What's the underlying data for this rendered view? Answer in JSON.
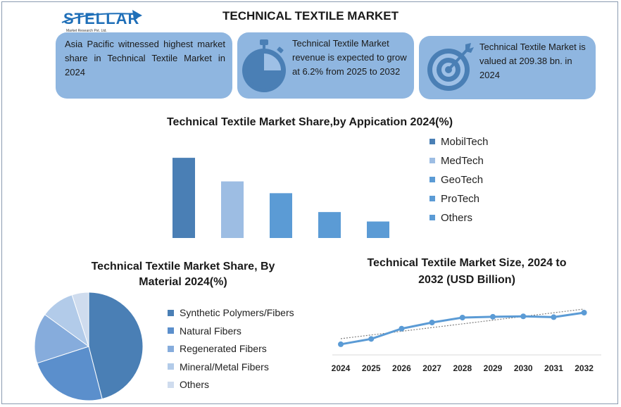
{
  "logo": {
    "name": "STELLAR",
    "subtitle": "Market Research Pvt. Ltd."
  },
  "title": "TECHNICAL TEXTILE MARKET",
  "cards": [
    {
      "text": "Asia Pacific witnessed highest market share in Technical Textile Market in 2024",
      "icon": "none"
    },
    {
      "text": "Technical Textile Market revenue is expected to grow at 6.2% from 2025 to 2032",
      "icon": "stopwatch-icon"
    },
    {
      "text": "Technical Textile Market is valued at 209.38 bn. in 2024",
      "icon": "target-icon"
    }
  ],
  "colors": {
    "card_bg": "#8fb6e0",
    "primary": "#4a7fb5",
    "line": "#5b9bd5"
  },
  "chart_data": [
    {
      "type": "bar",
      "title": "Technical Textile Market Share,by Appication 2024(%)",
      "categories": [
        "MobilTech",
        "MedTech",
        "GeoTech",
        "ProTech",
        "Others"
      ],
      "values": [
        34,
        24,
        19,
        11,
        7
      ],
      "colors": [
        "#4a7fb5",
        "#9dbde3",
        "#5b9bd5",
        "#5b9bd5",
        "#5b9bd5"
      ],
      "ylim": [
        0,
        40
      ],
      "xlabel": "",
      "ylabel": "",
      "legend": "right"
    },
    {
      "type": "pie",
      "title_line1": "Technical Textile Market Share, By",
      "title_line2": "Material 2024(%)",
      "labels": [
        "Synthetic Polymers/Fibers",
        "Natural Fibers",
        "Regenerated Fibers",
        "Mineral/Metal Fibers",
        "Others"
      ],
      "values": [
        46,
        24,
        15,
        10,
        5
      ],
      "colors": [
        "#4a7fb5",
        "#5b8fcc",
        "#86acdc",
        "#b2cbe9",
        "#cfdcee"
      ],
      "legend": "right"
    },
    {
      "type": "line",
      "title_line1": "Technical Textile Market Size, 2024 to",
      "title_line2": "2032 (USD Billion)",
      "x": [
        "2024",
        "2025",
        "2026",
        "2027",
        "2028",
        "2029",
        "2030",
        "2031",
        "2032"
      ],
      "values": [
        209,
        222,
        247,
        262,
        274,
        276,
        277,
        275,
        286
      ],
      "ylim": [
        190,
        310
      ],
      "trendline": true,
      "xlabel": "",
      "ylabel": ""
    }
  ]
}
